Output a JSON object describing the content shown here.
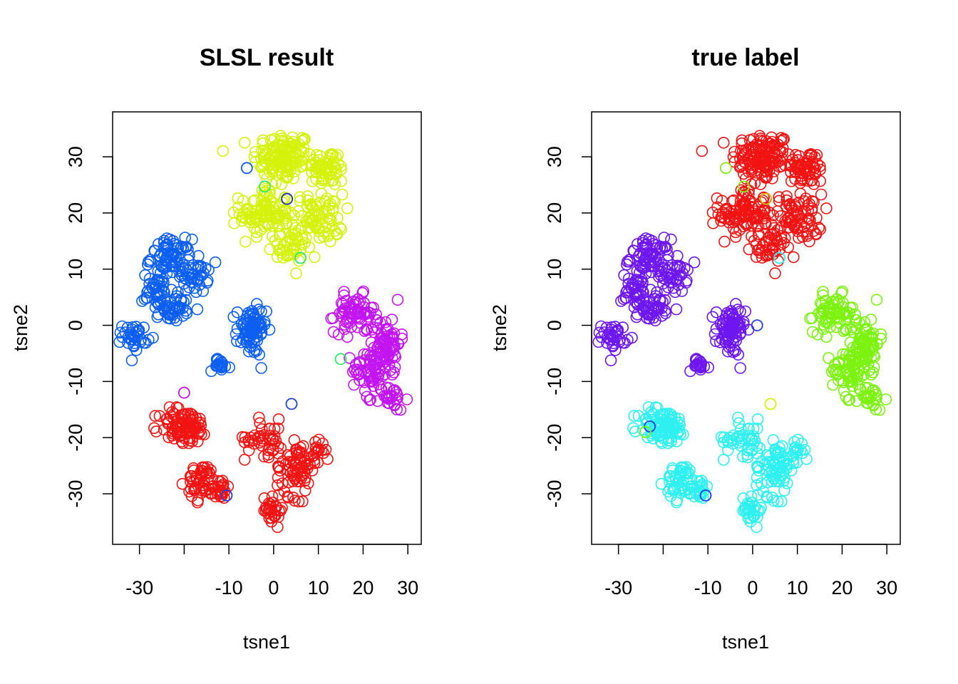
{
  "chart_data": [
    {
      "type": "scatter",
      "title": "SLSL result",
      "xlabel": "tsne1",
      "ylabel": "tsne2",
      "xticks": [
        -30,
        -20,
        -10,
        0,
        10,
        20,
        30
      ],
      "xtick_labels": [
        "-30",
        "",
        "-10",
        "0",
        "10",
        "20",
        "30"
      ],
      "yticks": [
        -30,
        -20,
        -10,
        0,
        10,
        20,
        30
      ],
      "ytick_labels": [
        "-30",
        "-20",
        "-10",
        "0",
        "10",
        "20",
        "30"
      ],
      "xlim": [
        -36,
        33
      ],
      "ylim": [
        -39,
        38
      ],
      "grid": false,
      "marker": "open-circle",
      "clusters": [
        {
          "color": "#D4F20A",
          "blobs": [
            [
              2,
              30,
              6,
              4,
              130
            ],
            [
              12,
              28,
              4,
              3,
              60
            ],
            [
              -2,
              20,
              5,
              4,
              110
            ],
            [
              10,
              19,
              5,
              4,
              80
            ],
            [
              3,
              14,
              4,
              3,
              40
            ]
          ]
        },
        {
          "color": "#0D5FF2",
          "blobs": [
            [
              -23,
              12,
              4,
              3,
              70
            ],
            [
              -26,
              6,
              3,
              3,
              40
            ],
            [
              -18,
              9,
              3,
              3,
              45
            ],
            [
              -22,
              3,
              3,
              2,
              40
            ],
            [
              -31,
              -2,
              2.5,
              2,
              35
            ],
            [
              -5,
              -1,
              3,
              4,
              80
            ],
            [
              -12,
              -7,
              2,
              1,
              20
            ]
          ]
        },
        {
          "color": "#C215F2",
          "blobs": [
            [
              18,
              2,
              4,
              3,
              70
            ],
            [
              25,
              -3,
              3,
              4,
              80
            ],
            [
              22,
              -8,
              4,
              3,
              60
            ],
            [
              26,
              -13,
              3,
              2,
              30
            ]
          ]
        },
        {
          "color": "#F21313",
          "blobs": [
            [
              -20,
              -18,
              5,
              3,
              90
            ],
            [
              -16,
              -28,
              3,
              3,
              50
            ],
            [
              -12,
              -29,
              2,
              2,
              20
            ],
            [
              -2,
              -20,
              4,
              3,
              40
            ],
            [
              5,
              -25,
              4,
              5,
              80
            ],
            [
              0,
              -33,
              2,
              2,
              30
            ],
            [
              10,
              -22,
              2,
              2,
              15
            ]
          ]
        }
      ],
      "outliers": [
        {
          "x": -6,
          "y": 28,
          "color": "#0D5FF2"
        },
        {
          "x": -2,
          "y": 24.7,
          "color": "#2FE86A"
        },
        {
          "x": 3,
          "y": 22.5,
          "color": "#1F2FCF"
        },
        {
          "x": 6,
          "y": 12,
          "color": "#2FE86A"
        },
        {
          "x": 15,
          "y": -6,
          "color": "#2FE86A"
        },
        {
          "x": 4,
          "y": -14,
          "color": "#2040E0"
        },
        {
          "x": -10.5,
          "y": -30.3,
          "color": "#2040E0"
        },
        {
          "x": -20,
          "y": -12,
          "color": "#C215F2"
        }
      ]
    },
    {
      "type": "scatter",
      "title": "true label",
      "xlabel": "tsne1",
      "ylabel": "tsne2",
      "xticks": [
        -30,
        -20,
        -10,
        0,
        10,
        20,
        30
      ],
      "xtick_labels": [
        "-30",
        "",
        "-10",
        "0",
        "10",
        "20",
        "30"
      ],
      "yticks": [
        -30,
        -20,
        -10,
        0,
        10,
        20,
        30
      ],
      "ytick_labels": [
        "-30",
        "-20",
        "-10",
        "0",
        "10",
        "20",
        "30"
      ],
      "xlim": [
        -36,
        33
      ],
      "ylim": [
        -39,
        38
      ],
      "grid": false,
      "marker": "open-circle",
      "clusters": [
        {
          "color": "#F21313",
          "blobs": [
            [
              2,
              30,
              6,
              4,
              130
            ],
            [
              12,
              28,
              4,
              3,
              60
            ],
            [
              -2,
              20,
              5,
              4,
              110
            ],
            [
              10,
              19,
              5,
              4,
              80
            ],
            [
              3,
              14,
              4,
              3,
              40
            ]
          ]
        },
        {
          "color": "#6E16F0",
          "blobs": [
            [
              -23,
              12,
              4,
              3,
              70
            ],
            [
              -26,
              6,
              3,
              3,
              40
            ],
            [
              -18,
              9,
              3,
              3,
              45
            ],
            [
              -22,
              3,
              3,
              2,
              40
            ],
            [
              -31,
              -2,
              2.5,
              2,
              35
            ],
            [
              -5,
              -1,
              3,
              4,
              80
            ],
            [
              -12,
              -7,
              2,
              1,
              20
            ]
          ]
        },
        {
          "color": "#7CF20F",
          "blobs": [
            [
              18,
              2,
              4,
              3,
              70
            ],
            [
              25,
              -3,
              3,
              4,
              80
            ],
            [
              22,
              -8,
              4,
              3,
              60
            ],
            [
              26,
              -13,
              3,
              2,
              30
            ]
          ]
        },
        {
          "color": "#2EF0F0",
          "blobs": [
            [
              -20,
              -18,
              5,
              3,
              90
            ],
            [
              -16,
              -28,
              3,
              3,
              50
            ],
            [
              -12,
              -29,
              2,
              2,
              20
            ],
            [
              -2,
              -20,
              4,
              3,
              40
            ],
            [
              5,
              -25,
              4,
              5,
              80
            ],
            [
              0,
              -33,
              2,
              2,
              30
            ],
            [
              10,
              -22,
              2,
              2,
              15
            ]
          ]
        }
      ],
      "outliers": [
        {
          "x": -6,
          "y": 28,
          "color": "#8BE81A"
        },
        {
          "x": -2,
          "y": 24.7,
          "color": "#7CF20F"
        },
        {
          "x": 3,
          "y": 22.5,
          "color": "#D4C20A"
        },
        {
          "x": 6,
          "y": 12,
          "color": "#2EF0F0"
        },
        {
          "x": 1,
          "y": 0,
          "color": "#2040E0"
        },
        {
          "x": -23,
          "y": -18,
          "color": "#2040E0"
        },
        {
          "x": -10.5,
          "y": -30.3,
          "color": "#2040E0"
        },
        {
          "x": -24,
          "y": -19,
          "color": "#7CF20F"
        },
        {
          "x": 4,
          "y": -14,
          "color": "#D4F20A"
        }
      ]
    }
  ]
}
